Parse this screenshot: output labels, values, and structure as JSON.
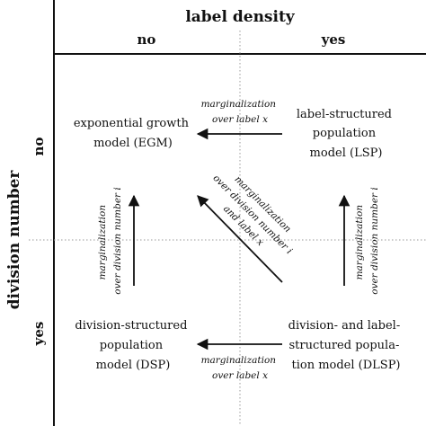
{
  "header": {
    "column_axis_title": "label density",
    "column_no": "no",
    "column_yes": "yes"
  },
  "side": {
    "row_axis_title": "division number",
    "row_no": "no",
    "row_yes": "yes"
  },
  "models": {
    "egm": [
      "exponential growth",
      "model (EGM)"
    ],
    "lsp": [
      "label-structured",
      "population",
      "model (LSP)"
    ],
    "dsp": [
      "division-structured",
      "population",
      "model (DSP)"
    ],
    "dlsp": [
      "division- and label-",
      "structured popula-",
      "tion model (DLSP)"
    ]
  },
  "arrows": {
    "top": [
      "marginalization",
      "over label x"
    ],
    "bottom": [
      "marginalization",
      "over label x"
    ],
    "left": [
      "marginalization",
      "over division number i"
    ],
    "right": [
      "marginalization",
      "over division number i"
    ],
    "diagonal": [
      "marginalization",
      "over division number i",
      "and label x"
    ]
  },
  "colors": {
    "ink": "#111111",
    "guide": "#9a9a9a",
    "background": "#ffffff"
  }
}
